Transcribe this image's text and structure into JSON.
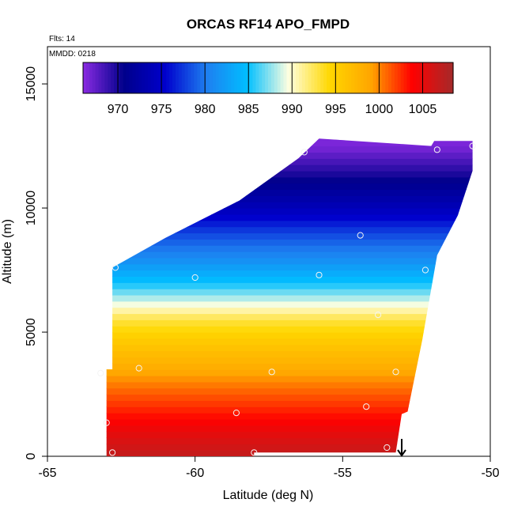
{
  "chart_data": {
    "type": "heatmap",
    "title": "ORCAS RF14 APO_FMPD",
    "annotations": {
      "flights": "Flts: 14",
      "date": "MMDD: 0218"
    },
    "xlabel": "Latitude (deg N)",
    "ylabel": "Altitude (m)",
    "xlim": [
      -65,
      -50
    ],
    "ylim": [
      0,
      16500
    ],
    "xticks": [
      -65,
      -60,
      -55,
      -50
    ],
    "xtick_labels": [
      "-65",
      "-60",
      "-55",
      "-50"
    ],
    "yticks": [
      0,
      5000,
      10000,
      15000
    ],
    "ytick_labels": [
      "0",
      "5000",
      "10000",
      "15000"
    ],
    "colorbar": {
      "range": [
        966,
        1008.5
      ],
      "ticks": [
        970,
        975,
        980,
        985,
        990,
        995,
        1000,
        1005
      ],
      "tick_labels": [
        "970",
        "975",
        "980",
        "985",
        "990",
        "995",
        "1000",
        "1005"
      ],
      "colors": [
        "#8a2be2",
        "#00008b",
        "#0000cd",
        "#1e7ff0",
        "#00bfff",
        "#ffffe0",
        "#ffd700",
        "#ffa500",
        "#ff0000",
        "#a52a2a"
      ]
    },
    "field_profile": [
      {
        "alt": 0,
        "value": 1007
      },
      {
        "alt": 1000,
        "value": 1005
      },
      {
        "alt": 2000,
        "value": 1002.5
      },
      {
        "alt": 3000,
        "value": 1000
      },
      {
        "alt": 3500,
        "value": 998.5
      },
      {
        "alt": 4500,
        "value": 996
      },
      {
        "alt": 5500,
        "value": 993
      },
      {
        "alt": 6200,
        "value": 989
      },
      {
        "alt": 7000,
        "value": 985
      },
      {
        "alt": 8000,
        "value": 981
      },
      {
        "alt": 9000,
        "value": 978
      },
      {
        "alt": 10000,
        "value": 974
      },
      {
        "alt": 11000,
        "value": 971
      },
      {
        "alt": 11800,
        "value": 968.5
      },
      {
        "alt": 12500,
        "value": 966.5
      }
    ],
    "domain_outline": [
      {
        "lat": -63.0,
        "alt": 0
      },
      {
        "lat": -63.0,
        "alt": 3500
      },
      {
        "lat": -62.8,
        "alt": 3500
      },
      {
        "lat": -62.8,
        "alt": 7600
      },
      {
        "lat": -61.0,
        "alt": 8800
      },
      {
        "lat": -58.5,
        "alt": 10300
      },
      {
        "lat": -56.5,
        "alt": 12000
      },
      {
        "lat": -55.8,
        "alt": 12800
      },
      {
        "lat": -52.0,
        "alt": 12500
      },
      {
        "lat": -51.9,
        "alt": 12700
      },
      {
        "lat": -50.6,
        "alt": 12700
      },
      {
        "lat": -50.6,
        "alt": 11500
      },
      {
        "lat": -51.1,
        "alt": 9700
      },
      {
        "lat": -51.8,
        "alt": 8100
      },
      {
        "lat": -52.3,
        "alt": 4700
      },
      {
        "lat": -52.8,
        "alt": 1800
      },
      {
        "lat": -53.0,
        "alt": 1700
      },
      {
        "lat": -53.2,
        "alt": 150
      },
      {
        "lat": -58.0,
        "alt": 150
      },
      {
        "lat": -58.0,
        "alt": 0
      }
    ],
    "flight_points": [
      {
        "lat": -63.2,
        "alt": 3350
      },
      {
        "lat": -63.0,
        "alt": 1350
      },
      {
        "lat": -62.8,
        "alt": 150
      },
      {
        "lat": -62.7,
        "alt": 7600
      },
      {
        "lat": -61.9,
        "alt": 3550
      },
      {
        "lat": -60.0,
        "alt": 7200
      },
      {
        "lat": -58.6,
        "alt": 1750
      },
      {
        "lat": -58.0,
        "alt": 150
      },
      {
        "lat": -57.4,
        "alt": 3400
      },
      {
        "lat": -56.3,
        "alt": 12250
      },
      {
        "lat": -55.8,
        "alt": 7300
      },
      {
        "lat": -54.4,
        "alt": 8900
      },
      {
        "lat": -54.2,
        "alt": 2000
      },
      {
        "lat": -53.8,
        "alt": 5700
      },
      {
        "lat": -53.5,
        "alt": 350
      },
      {
        "lat": -53.2,
        "alt": 3400
      },
      {
        "lat": -52.2,
        "alt": 7500
      },
      {
        "lat": -51.8,
        "alt": 12350
      },
      {
        "lat": -50.6,
        "alt": 12500
      }
    ],
    "marker": {
      "type": "arrow-down",
      "lat": -53.0,
      "alt_top": 700,
      "alt_bottom": 0
    }
  }
}
